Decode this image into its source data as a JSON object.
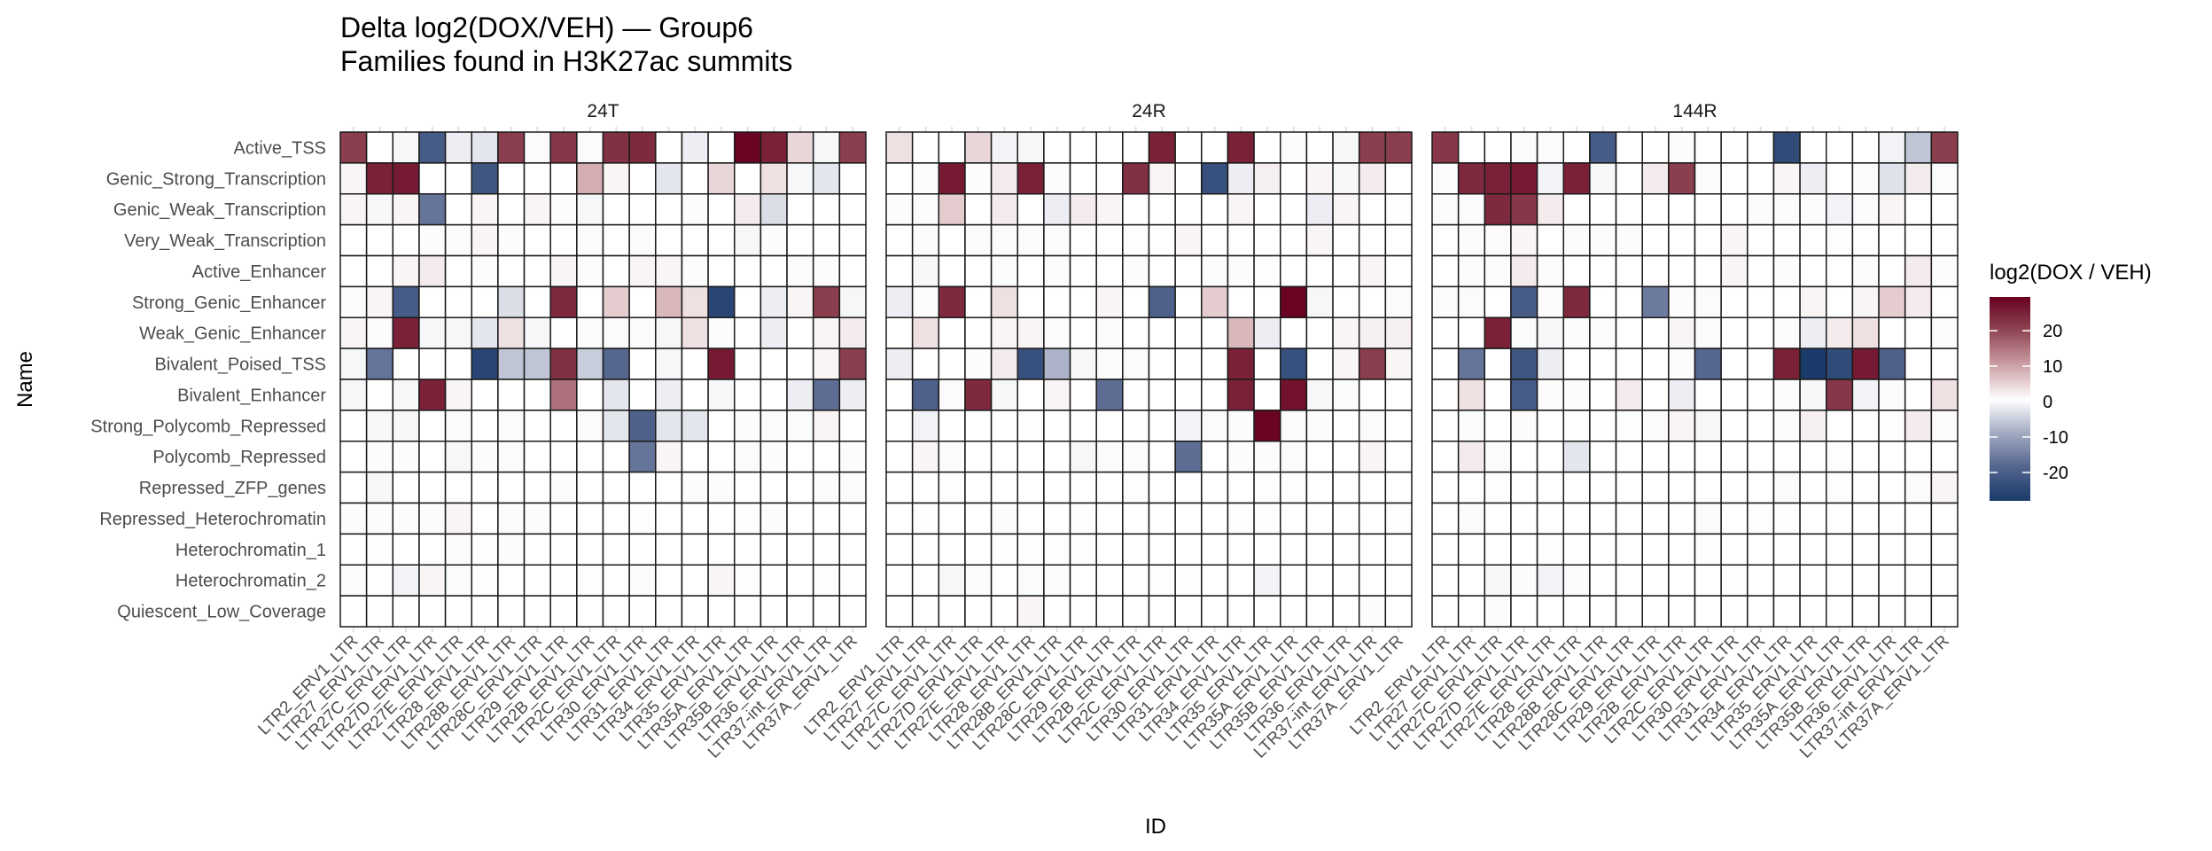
{
  "chart_data": {
    "type": "heatmap",
    "title": "Delta log2(DOX/VEH) — Group6",
    "subtitle": "Families found in H3K27ac summits",
    "xlabel": "ID",
    "ylabel": "Name",
    "legend": {
      "title": "log2(DOX / VEH)",
      "ticks": [
        20,
        10,
        0,
        -10,
        -20
      ],
      "range": [
        -28,
        29.5
      ],
      "placement": "right",
      "colors": {
        "low": "#1a3a6a",
        "mid": "#ffffff",
        "high": "#67001f"
      }
    },
    "rows": [
      "Active_TSS",
      "Genic_Strong_Transcription",
      "Genic_Weak_Transcription",
      "Very_Weak_Transcription",
      "Active_Enhancer",
      "Strong_Genic_Enhancer",
      "Weak_Genic_Enhancer",
      "Bivalent_Poised_TSS",
      "Bivalent_Enhancer",
      "Strong_Polycomb_Repressed",
      "Polycomb_Repressed",
      "Repressed_ZFP_genes",
      "Repressed_Heterochromatin",
      "Heterochromatin_1",
      "Heterochromatin_2",
      "Quiescent_Low_Coverage"
    ],
    "columns": [
      "LTR2_ERV1_LTR",
      "LTR27_ERV1_LTR",
      "LTR27C_ERV1_LTR",
      "LTR27D_ERV1_LTR",
      "LTR27E_ERV1_LTR",
      "LTR28_ERV1_LTR",
      "LTR28B_ERV1_LTR",
      "LTR28C_ERV1_LTR",
      "LTR29_ERV1_LTR",
      "LTR2B_ERV1_LTR",
      "LTR2C_ERV1_LTR",
      "LTR30_ERV1_LTR",
      "LTR31_ERV1_LTR",
      "LTR34_ERV1_LTR",
      "LTR35_ERV1_LTR",
      "LTR35A_ERV1_LTR",
      "LTR35B_ERV1_LTR",
      "LTR36_ERV1_LTR",
      "LTR37-int_ERV1_LTR",
      "LTR37A_ERV1_LTR"
    ],
    "panels": [
      {
        "name": "24T",
        "values": [
          [
            21,
            0,
            -1,
            -22,
            -2,
            -3,
            21,
            0.5,
            22,
            0.5,
            23,
            24,
            0,
            -2,
            0,
            29,
            25,
            4,
            -1,
            21
          ],
          [
            1,
            25,
            26,
            0,
            0,
            -23,
            0,
            0,
            0,
            8,
            1,
            0,
            -3,
            0,
            4,
            0,
            3,
            -1,
            -3,
            0
          ],
          [
            1,
            -1,
            1,
            -18,
            0,
            1,
            0,
            1,
            0.5,
            -1,
            0,
            0,
            0,
            0.3,
            0,
            2,
            -4,
            0,
            0,
            0
          ],
          [
            0,
            0,
            0,
            0.3,
            0.5,
            1,
            0.3,
            0,
            0,
            0.3,
            0,
            0.3,
            0,
            0,
            0,
            -1,
            0.3,
            0,
            0,
            0
          ],
          [
            0,
            0,
            1,
            2,
            0,
            0.3,
            0,
            0,
            1,
            0.3,
            0,
            1,
            1,
            0.3,
            0,
            0,
            0,
            -0.5,
            0.3,
            0
          ],
          [
            0.3,
            1,
            -22,
            0,
            0,
            0,
            -4,
            0,
            24,
            0,
            5,
            0,
            7,
            3,
            -26,
            0,
            -2,
            1,
            21,
            -1
          ],
          [
            1,
            0.5,
            25,
            -1,
            -1,
            -3,
            3,
            -1,
            0,
            0.3,
            0.5,
            0.3,
            -1,
            3,
            0.3,
            0,
            -2,
            0,
            1,
            2
          ],
          [
            -1,
            -18,
            0,
            0,
            0,
            -26,
            -7,
            -7,
            23,
            -6,
            -20,
            0,
            -1,
            0,
            26,
            0,
            0,
            0,
            1,
            21
          ],
          [
            -1,
            0,
            -1,
            25,
            1,
            0,
            0,
            0,
            15,
            0,
            -3,
            0,
            -2,
            0,
            -1,
            0,
            0,
            -2,
            -19,
            -2
          ],
          [
            0,
            -1,
            -1,
            0,
            -0.5,
            0,
            -0.5,
            0,
            0,
            0.5,
            -3,
            -21,
            -3,
            -3,
            0,
            0.3,
            -0.5,
            -0.5,
            1,
            0
          ],
          [
            0,
            0.3,
            0.3,
            0,
            -1,
            0.3,
            0.5,
            0,
            0,
            0,
            0,
            -18,
            1,
            0,
            0,
            -0.5,
            0.3,
            0,
            0,
            0.3
          ],
          [
            0,
            -1,
            0,
            0,
            0,
            0,
            0,
            0,
            0.3,
            0,
            0,
            0,
            0,
            0.3,
            0.3,
            0,
            0,
            0,
            0.3,
            0.3
          ],
          [
            0.3,
            0.3,
            0.3,
            0.3,
            1,
            0,
            0.3,
            0.3,
            0,
            0,
            0,
            -0.3,
            0,
            0,
            0,
            -0.3,
            0.3,
            0,
            0,
            0
          ],
          [
            0,
            0.2,
            0,
            0,
            0.3,
            0.2,
            0.3,
            0,
            0,
            0,
            0,
            0,
            0,
            0,
            0,
            0,
            0,
            0,
            0,
            0
          ],
          [
            0.3,
            0,
            -1.5,
            1,
            -0.5,
            0.2,
            0,
            0,
            0,
            0.2,
            0,
            0.3,
            0,
            0,
            1,
            0.2,
            0,
            0,
            0.2,
            0
          ],
          [
            0,
            0,
            0,
            0,
            0,
            0,
            0,
            0,
            0,
            0,
            0,
            0,
            0,
            0,
            0,
            0,
            0,
            0,
            0,
            0
          ]
        ]
      },
      {
        "name": "24R",
        "values": [
          [
            3,
            0,
            0,
            4,
            -1.5,
            -1,
            0,
            0,
            0,
            0,
            25,
            0,
            0,
            25,
            0,
            0.3,
            0,
            -1,
            21,
            21
          ],
          [
            0,
            0.3,
            26,
            0.3,
            2,
            25,
            -0.5,
            0,
            0,
            23,
            1,
            0,
            -24,
            -2,
            1.5,
            0,
            1,
            -1,
            2,
            0
          ],
          [
            0.3,
            -0.5,
            5,
            0,
            2,
            0,
            -2,
            2,
            1,
            0,
            0,
            0,
            0,
            1,
            0,
            0,
            -2,
            1,
            0,
            0.2
          ],
          [
            0,
            0.3,
            0,
            0.3,
            0.5,
            0.5,
            0.3,
            0,
            0,
            0.2,
            0,
            1,
            0,
            0,
            0,
            0,
            1,
            0,
            0,
            0
          ],
          [
            0,
            -1,
            0,
            0,
            -0.5,
            0,
            0.3,
            0,
            0,
            0.3,
            0,
            0,
            0.3,
            0.3,
            -0.3,
            0,
            0,
            0,
            1,
            0
          ],
          [
            -2,
            0.3,
            24,
            0,
            3,
            0,
            0,
            0,
            1,
            0,
            -21,
            0,
            5,
            0,
            0,
            29,
            -1,
            0,
            0,
            0.3
          ],
          [
            0,
            3,
            0,
            0,
            1,
            1,
            0.3,
            0,
            0.3,
            0,
            0,
            0,
            0,
            7,
            -2,
            0,
            0,
            1,
            1.5,
            1.5
          ],
          [
            -2,
            0,
            0,
            0.3,
            2,
            -24,
            -9,
            -1,
            0.3,
            0.5,
            0,
            0,
            0,
            25,
            0,
            -24,
            0,
            1,
            21,
            1
          ],
          [
            0,
            -21,
            0.5,
            24,
            -1,
            0,
            1,
            0,
            -19,
            0,
            0,
            0,
            0,
            25,
            0,
            27,
            -1,
            -0.5,
            0,
            0
          ],
          [
            0,
            -1.5,
            0,
            0,
            0,
            -0.3,
            0,
            0,
            0,
            0,
            0,
            -1.5,
            -0.5,
            0.3,
            29,
            0.3,
            0.3,
            0,
            -0.5,
            0
          ],
          [
            0,
            1,
            -0.5,
            0,
            0,
            0,
            0,
            -1,
            -0.5,
            -0.5,
            0,
            -19,
            0,
            0.3,
            0.3,
            0.5,
            0,
            0,
            1,
            0
          ],
          [
            0,
            0,
            0.2,
            0,
            0,
            0,
            0,
            0,
            0,
            0.2,
            0,
            0,
            0,
            0,
            0.2,
            0.2,
            0,
            0,
            0,
            0
          ],
          [
            0,
            0.2,
            0,
            0,
            0.3,
            0,
            0,
            0.2,
            0,
            0,
            0,
            0,
            0,
            0.2,
            0.2,
            0,
            0,
            0,
            0,
            0.2
          ],
          [
            0,
            0,
            0,
            0,
            0.2,
            0.2,
            0.2,
            0.2,
            0,
            0,
            0,
            0,
            0,
            0,
            0,
            0,
            0,
            0,
            0,
            0
          ],
          [
            0,
            0,
            -1,
            -0.5,
            0,
            -0.5,
            0.3,
            0,
            0,
            0,
            0.2,
            0.2,
            0,
            0,
            -1.5,
            0,
            0,
            0,
            0,
            0
          ],
          [
            0,
            0,
            0,
            0,
            0,
            1,
            0,
            0,
            0,
            0,
            0,
            0,
            0,
            0,
            0,
            0,
            0,
            0,
            0.3,
            0
          ]
        ]
      },
      {
        "name": "144R",
        "values": [
          [
            22,
            0,
            0,
            -0.5,
            0.5,
            0,
            -22,
            0,
            0,
            0.3,
            0,
            0,
            0,
            -25,
            0,
            0,
            0,
            -1.5,
            -7,
            21
          ],
          [
            0.3,
            24,
            25,
            26,
            -1.5,
            25,
            -1,
            0,
            2,
            21,
            -0.5,
            0,
            0,
            1,
            -2,
            0,
            -0.5,
            -3.5,
            2,
            -0.5
          ],
          [
            0.5,
            -0.5,
            24,
            22,
            2,
            0,
            0,
            0,
            0,
            0,
            0,
            0,
            0.3,
            0.5,
            0.3,
            -1.5,
            -0.5,
            1,
            0,
            0
          ],
          [
            0,
            0.3,
            0.5,
            1,
            0,
            0.3,
            0.3,
            0.3,
            0,
            0,
            0,
            1,
            0,
            0,
            0,
            0.2,
            0,
            0,
            0,
            0
          ],
          [
            0,
            0.3,
            0.3,
            2,
            0.3,
            0,
            0,
            0,
            0,
            0,
            0,
            1,
            0,
            0.3,
            0,
            0,
            0.3,
            0,
            2,
            0.3
          ],
          [
            0.3,
            0.5,
            0,
            -22,
            0.3,
            24,
            0,
            0,
            -17,
            0.3,
            -0.5,
            0,
            0,
            0,
            1,
            0,
            1,
            5,
            2,
            0
          ],
          [
            0,
            0,
            25,
            -0.5,
            -1,
            0.3,
            0.5,
            0,
            0,
            1,
            0.3,
            0,
            0,
            0.5,
            -2,
            2,
            3,
            0,
            0,
            0.3
          ],
          [
            0,
            -18,
            0,
            -23,
            -2,
            0,
            0,
            0,
            0,
            0.3,
            -20,
            0,
            0,
            25,
            -28,
            -25,
            26,
            -21,
            0,
            0
          ],
          [
            0,
            3,
            0,
            -22,
            0.3,
            0.3,
            0,
            2,
            0,
            -2,
            0,
            0,
            0,
            0.3,
            -1,
            22,
            -1.5,
            0.3,
            0,
            3
          ],
          [
            0,
            -0.5,
            0,
            0.3,
            0,
            0,
            -0.3,
            -0.3,
            0.5,
            1,
            -1,
            0,
            0,
            0.3,
            1.5,
            0,
            0,
            -0.3,
            2,
            0.5
          ],
          [
            0,
            2,
            0.5,
            0,
            0,
            -3,
            0,
            0,
            0,
            0,
            0,
            0,
            0,
            0,
            0,
            -0.3,
            0,
            0,
            0,
            0
          ],
          [
            0,
            0,
            -0.3,
            0,
            0,
            0,
            0,
            0,
            0,
            0,
            0,
            0,
            0,
            0.5,
            0,
            -0.3,
            0,
            0,
            0.5,
            1
          ],
          [
            0,
            -0.5,
            0,
            0,
            0,
            0,
            0,
            0,
            0,
            0,
            -0.5,
            0,
            -0.3,
            0.2,
            0,
            0,
            0,
            0,
            0,
            0
          ],
          [
            0,
            0,
            0,
            0,
            0.2,
            0,
            0,
            0,
            0,
            0,
            -0.2,
            0,
            0,
            0,
            0,
            0,
            0,
            0,
            0,
            0
          ],
          [
            0,
            0,
            -1,
            0.3,
            -1.5,
            -0.5,
            0,
            0,
            0,
            0,
            0,
            -0.3,
            0,
            0,
            0,
            0,
            0,
            0,
            0,
            0
          ],
          [
            0,
            0,
            0.3,
            0,
            0,
            0,
            0,
            0,
            0,
            0,
            0,
            0,
            0,
            0,
            0,
            0,
            0,
            0,
            0,
            0
          ]
        ]
      }
    ]
  }
}
